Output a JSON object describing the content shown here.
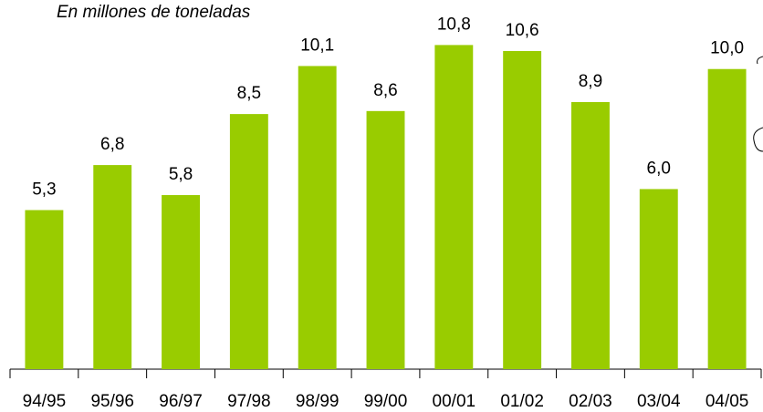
{
  "chart_data": {
    "type": "bar",
    "title": "En millones de toneladas",
    "categories": [
      "94/95",
      "95/96",
      "96/97",
      "97/98",
      "98/99",
      "99/00",
      "00/01",
      "01/02",
      "02/03",
      "03/04",
      "04/05"
    ],
    "values": [
      5.3,
      6.8,
      5.8,
      8.5,
      10.1,
      8.6,
      10.8,
      10.6,
      8.9,
      6.0,
      10.0
    ],
    "value_labels": [
      "5,3",
      "6,8",
      "5,8",
      "8,5",
      "10,1",
      "8,6",
      "10,8",
      "10,6",
      "8,9",
      "6,0",
      "10,0"
    ],
    "color": "#99cc00",
    "ylim": [
      0,
      12.3
    ]
  }
}
